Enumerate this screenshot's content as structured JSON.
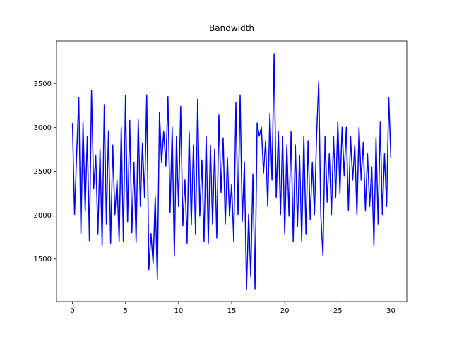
{
  "chart_data": {
    "type": "line",
    "title": "Bandwidth",
    "x": [
      0,
      0.2,
      0.4,
      0.6,
      0.8,
      1,
      1.2,
      1.4,
      1.6,
      1.8,
      2,
      2.2,
      2.4,
      2.6,
      2.8,
      3,
      3.2,
      3.4,
      3.6,
      3.8,
      4,
      4.2,
      4.4,
      4.6,
      4.8,
      5,
      5.2,
      5.4,
      5.6,
      5.8,
      6,
      6.2,
      6.4,
      6.6,
      6.8,
      7,
      7.2,
      7.4,
      7.6,
      7.8,
      8,
      8.2,
      8.4,
      8.6,
      8.8,
      9,
      9.2,
      9.4,
      9.6,
      9.8,
      10,
      10.2,
      10.4,
      10.6,
      10.8,
      11,
      11.2,
      11.4,
      11.6,
      11.8,
      12,
      12.2,
      12.4,
      12.6,
      12.8,
      13,
      13.2,
      13.4,
      13.6,
      13.8,
      14,
      14.2,
      14.4,
      14.6,
      14.8,
      15,
      15.2,
      15.4,
      15.6,
      15.8,
      16,
      16.2,
      16.4,
      16.6,
      16.8,
      17,
      17.2,
      17.4,
      17.6,
      17.8,
      18,
      18.2,
      18.4,
      18.6,
      18.8,
      19,
      19.2,
      19.4,
      19.6,
      19.8,
      20,
      20.2,
      20.4,
      20.6,
      20.8,
      21,
      21.2,
      21.4,
      21.6,
      21.8,
      22,
      22.2,
      22.4,
      22.6,
      22.8,
      23,
      23.2,
      23.4,
      23.6,
      23.8,
      24,
      24.2,
      24.4,
      24.6,
      24.8,
      25,
      25.2,
      25.4,
      25.6,
      25.8,
      26,
      26.2,
      26.4,
      26.6,
      26.8,
      27,
      27.2,
      27.4,
      27.6,
      27.8,
      28,
      28.2,
      28.4,
      28.6,
      28.8,
      29,
      29.2,
      29.4,
      29.6,
      29.8,
      30
    ],
    "values": [
      3050,
      2010,
      2700,
      3340,
      1790,
      3060,
      2040,
      2900,
      1710,
      3420,
      2300,
      2680,
      1780,
      2750,
      1650,
      3260,
      1900,
      2960,
      1680,
      2800,
      2000,
      2400,
      1700,
      3000,
      1700,
      3360,
      1920,
      3080,
      1800,
      2600,
      1690,
      3090,
      2100,
      2820,
      2200,
      3370,
      1380,
      1790,
      1450,
      2210,
      1270,
      3170,
      2600,
      2950,
      2560,
      3350,
      2030,
      3000,
      1530,
      2900,
      2100,
      3240,
      1880,
      2400,
      1680,
      2950,
      1890,
      2800,
      1780,
      3320,
      1990,
      2630,
      1700,
      2900,
      1680,
      2800,
      1900,
      2750,
      1740,
      3140,
      2260,
      2880,
      1900,
      2650,
      1990,
      2350,
      1700,
      3280,
      2000,
      3370,
      1930,
      2600,
      1150,
      2010,
      1300,
      2470,
      1160,
      3050,
      2900,
      3000,
      2480,
      2850,
      2100,
      3160,
      2400,
      3840,
      2200,
      2950,
      2000,
      2900,
      1780,
      2800,
      1990,
      2950,
      1700,
      2800,
      1870,
      2680,
      1700,
      2900,
      1780,
      2850,
      1950,
      2600,
      2000,
      2900,
      3520,
      2000,
      1540,
      2900,
      2150,
      2700,
      2000,
      2900,
      2200,
      3060,
      2250,
      3000,
      2450,
      3000,
      2050,
      2900,
      2400,
      2800,
      2000,
      3000,
      2400,
      2830,
      2050,
      2700,
      2100,
      2550,
      1650,
      2880,
      1900,
      3060,
      2000,
      2700,
      2100,
      3340,
      2650
    ],
    "color": "blue",
    "xlim": [
      -1.5,
      31.5
    ],
    "ylim": [
      1015,
      3985
    ],
    "xticks": [
      0,
      5,
      10,
      15,
      20,
      25,
      30
    ],
    "yticks": [
      1500,
      2000,
      2500,
      3000,
      3500
    ]
  }
}
